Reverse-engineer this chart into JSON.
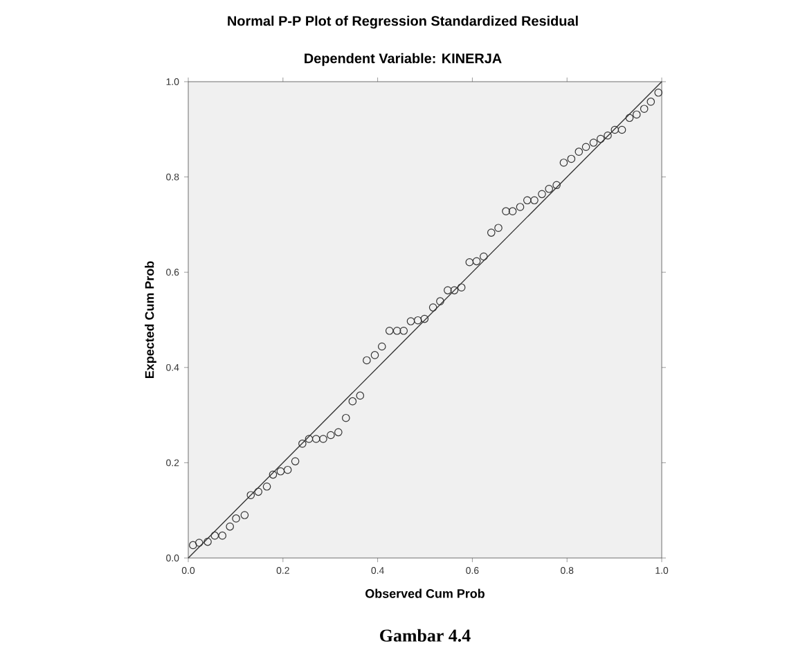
{
  "chart_data": {
    "type": "scatter",
    "title": "Normal P-P Plot of Regression Standardized Residual",
    "subtitle": "Dependent Variable: KINERJA",
    "xlabel": "Observed Cum Prob",
    "ylabel": "Expected Cum Prob",
    "annotations": [
      "Gambar 4.4"
    ],
    "xlim": [
      0,
      1
    ],
    "ylim": [
      0,
      1
    ],
    "xticks": [
      {
        "value": 0,
        "label": "0.0"
      },
      {
        "value": 0.2,
        "label": "0.2"
      },
      {
        "value": 0.4,
        "label": "0.4"
      },
      {
        "value": 0.6,
        "label": "0.6"
      },
      {
        "value": 0.8,
        "label": "0.8"
      },
      {
        "value": 1,
        "label": "1.0"
      }
    ],
    "yticks": [
      {
        "value": 0,
        "label": "0.0"
      },
      {
        "value": 0.2,
        "label": "0.2"
      },
      {
        "value": 0.4,
        "label": "0.4"
      },
      {
        "value": 0.6,
        "label": "0.6"
      },
      {
        "value": 0.8,
        "label": "0.8"
      },
      {
        "value": 1,
        "label": "1.0"
      }
    ],
    "marker": "circle",
    "grid": false,
    "series": [
      {
        "color": "#333333",
        "x": [
          0.01,
          0.023,
          0.041,
          0.056,
          0.072,
          0.088,
          0.101,
          0.119,
          0.132,
          0.148,
          0.166,
          0.179,
          0.195,
          0.21,
          0.226,
          0.241,
          0.255,
          0.27,
          0.285,
          0.301,
          0.317,
          0.333,
          0.347,
          0.363,
          0.377,
          0.394,
          0.409,
          0.425,
          0.441,
          0.455,
          0.47,
          0.485,
          0.499,
          0.517,
          0.532,
          0.548,
          0.562,
          0.577,
          0.594,
          0.609,
          0.624,
          0.64,
          0.655,
          0.671,
          0.685,
          0.701,
          0.716,
          0.731,
          0.747,
          0.762,
          0.778,
          0.793,
          0.809,
          0.825,
          0.84,
          0.856,
          0.871,
          0.886,
          0.901,
          0.916,
          0.932,
          0.947,
          0.963,
          0.977,
          0.993
        ],
        "values": [
          0.027,
          0.032,
          0.034,
          0.047,
          0.047,
          0.066,
          0.083,
          0.09,
          0.132,
          0.139,
          0.15,
          0.175,
          0.182,
          0.185,
          0.203,
          0.24,
          0.25,
          0.25,
          0.25,
          0.258,
          0.264,
          0.294,
          0.329,
          0.341,
          0.415,
          0.426,
          0.444,
          0.477,
          0.477,
          0.477,
          0.497,
          0.499,
          0.502,
          0.526,
          0.539,
          0.562,
          0.562,
          0.568,
          0.621,
          0.623,
          0.633,
          0.683,
          0.693,
          0.728,
          0.728,
          0.737,
          0.751,
          0.751,
          0.764,
          0.775,
          0.783,
          0.83,
          0.838,
          0.853,
          0.863,
          0.872,
          0.88,
          0.887,
          0.899,
          0.899,
          0.924,
          0.931,
          0.943,
          0.958,
          0.977
        ]
      },
      {
        "type": "line",
        "marker": "none",
        "color": "#333333",
        "x": [
          0,
          1
        ],
        "values": [
          0,
          1
        ]
      }
    ]
  }
}
